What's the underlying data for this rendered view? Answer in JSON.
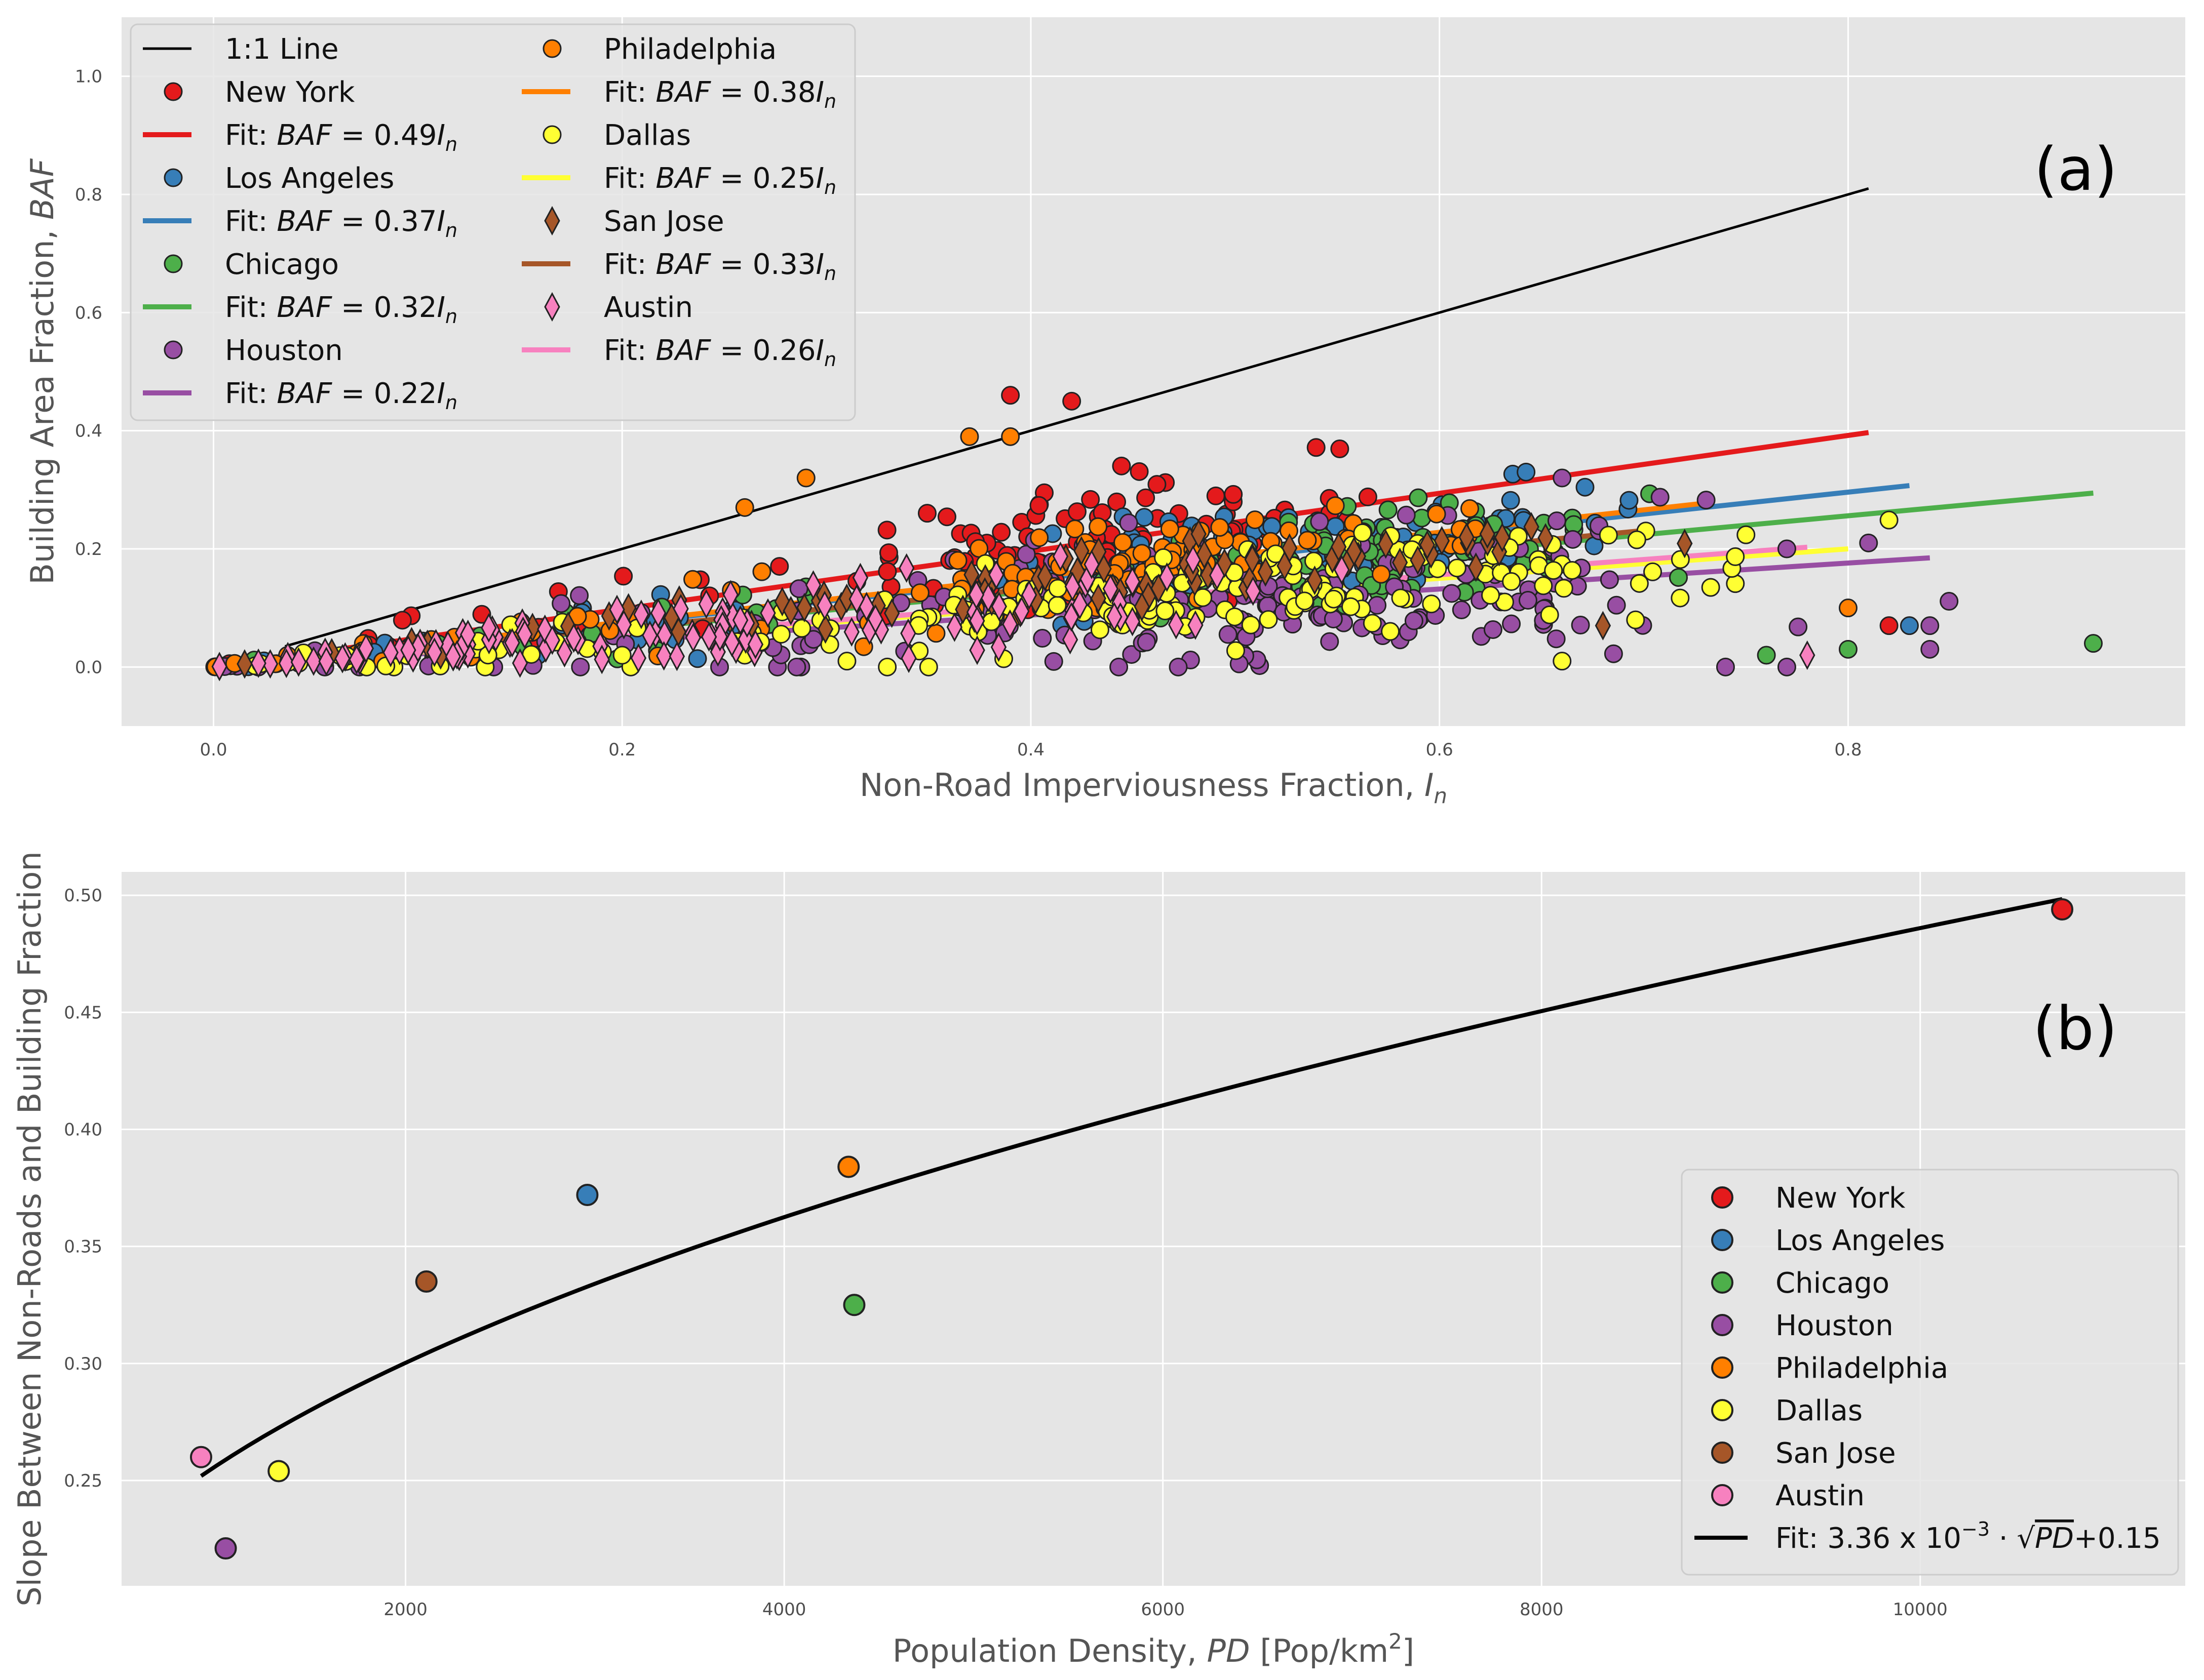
{
  "chart_data": [
    {
      "panel": "a",
      "type": "scatter",
      "panel_label": "(a)",
      "xlabel": "Non-Road Imperviousness Fraction, ",
      "xlabel_var": "I",
      "xlabel_sub": "n",
      "ylabel": "Building Area Fraction, ",
      "ylabel_var": "BAF",
      "xlim": [
        -0.045,
        0.965
      ],
      "ylim": [
        -0.1,
        1.1
      ],
      "xticks": [
        0.0,
        0.2,
        0.4,
        0.6,
        0.8
      ],
      "xtick_labels": [
        "0.0",
        "0.2",
        "0.4",
        "0.6",
        "0.8"
      ],
      "yticks": [
        0.0,
        0.2,
        0.4,
        0.6,
        0.8,
        1.0
      ],
      "ytick_labels": [
        "0.0",
        "0.2",
        "0.4",
        "0.6",
        "0.8",
        "1.0"
      ],
      "grid": true,
      "legend_location": "top-left",
      "legend_columns": 2,
      "one_to_one_line": {
        "label": "1:1 Line",
        "x": [
          0.035,
          0.81
        ],
        "y": [
          0.035,
          0.81
        ],
        "color": "#000000"
      },
      "series": [
        {
          "name": "New York",
          "color": "#e41a1c",
          "marker": "circle",
          "slope": 0.49,
          "fit_label_prefix": "Fit: ",
          "fit_label_var": "BAF",
          "fit_label_eq": " = 0.49",
          "fit_label_tail": "I",
          "fit_label_sub": "n",
          "fit_x": [
            0.0,
            0.81
          ],
          "x_center": 0.43,
          "x_spread": 0.09,
          "y_noise": 0.07,
          "count": 130,
          "extra_points": [
            [
              0.39,
              0.46
            ],
            [
              0.42,
              0.45
            ],
            [
              0.82,
              0.07
            ]
          ]
        },
        {
          "name": "Los Angeles",
          "color": "#377eb8",
          "marker": "circle",
          "slope": 0.37,
          "fit_label_prefix": "Fit: ",
          "fit_label_var": "BAF",
          "fit_label_eq": " = 0.37",
          "fit_label_tail": "I",
          "fit_label_sub": "n",
          "fit_x": [
            0.0,
            0.83
          ],
          "x_center": 0.55,
          "x_spread": 0.1,
          "y_noise": 0.06,
          "count": 130,
          "extra_points": [
            [
              0.83,
              0.07
            ]
          ]
        },
        {
          "name": "Chicago",
          "color": "#4daf4a",
          "marker": "circle",
          "slope": 0.32,
          "fit_label_prefix": "Fit: ",
          "fit_label_var": "BAF",
          "fit_label_eq": " = 0.32",
          "fit_label_tail": "I",
          "fit_label_sub": "n",
          "fit_x": [
            0.0,
            0.92
          ],
          "x_center": 0.56,
          "x_spread": 0.08,
          "y_noise": 0.06,
          "count": 110,
          "extra_points": [
            [
              0.92,
              0.04
            ],
            [
              0.8,
              0.03
            ],
            [
              0.76,
              0.02
            ]
          ]
        },
        {
          "name": "Houston",
          "color": "#984ea3",
          "marker": "circle",
          "slope": 0.22,
          "fit_label_prefix": "Fit: ",
          "fit_label_var": "BAF",
          "fit_label_eq": " = 0.22",
          "fit_label_tail": "I",
          "fit_label_sub": "n",
          "fit_x": [
            0.0,
            0.84
          ],
          "x_center": 0.53,
          "x_spread": 0.15,
          "y_noise": 0.08,
          "count": 200,
          "extra_points": [
            [
              0.84,
              0.03
            ],
            [
              0.84,
              0.07
            ],
            [
              0.74,
              0.0
            ],
            [
              0.77,
              0.0
            ],
            [
              0.66,
              0.32
            ],
            [
              0.77,
              0.2
            ],
            [
              0.81,
              0.21
            ]
          ]
        },
        {
          "name": "Philadelphia",
          "color": "#ff7f00",
          "marker": "circle",
          "slope": 0.38,
          "fit_label_prefix": "Fit: ",
          "fit_label_var": "BAF",
          "fit_label_eq": " = 0.38",
          "fit_label_tail": "I",
          "fit_label_sub": "n",
          "fit_x": [
            0.0,
            0.73
          ],
          "x_center": 0.46,
          "x_spread": 0.11,
          "y_noise": 0.06,
          "count": 110,
          "extra_points": [
            [
              0.37,
              0.39
            ],
            [
              0.39,
              0.39
            ],
            [
              0.29,
              0.32
            ],
            [
              0.26,
              0.27
            ],
            [
              0.8,
              0.1
            ]
          ]
        },
        {
          "name": "Dallas",
          "color": "#ffff33",
          "marker": "circle",
          "slope": 0.25,
          "fit_label_prefix": "Fit: ",
          "fit_label_var": "BAF",
          "fit_label_eq": " = 0.25",
          "fit_label_tail": "I",
          "fit_label_sub": "n",
          "fit_x": [
            0.0,
            0.8
          ],
          "x_center": 0.52,
          "x_spread": 0.15,
          "y_noise": 0.06,
          "count": 180,
          "extra_points": [
            [
              0.2,
              0.02
            ],
            [
              0.26,
              0.02
            ],
            [
              0.31,
              0.01
            ],
            [
              0.35,
              0.0
            ],
            [
              0.66,
              0.01
            ]
          ]
        },
        {
          "name": "San Jose",
          "color": "#a65628",
          "marker": "diamond",
          "slope": 0.33,
          "fit_label_prefix": "Fit: ",
          "fit_label_var": "BAF",
          "fit_label_eq": " = 0.33",
          "fit_label_tail": "I",
          "fit_label_sub": "n",
          "fit_x": [
            0.0,
            0.7
          ],
          "x_center": 0.45,
          "x_spread": 0.15,
          "y_noise": 0.04,
          "count": 90,
          "extra_points": [
            [
              0.68,
              0.07
            ]
          ]
        },
        {
          "name": "Austin",
          "color": "#f781bf",
          "marker": "diamond",
          "slope": 0.26,
          "fit_label_prefix": "Fit: ",
          "fit_label_var": "BAF",
          "fit_label_eq": " = 0.26",
          "fit_label_tail": "I",
          "fit_label_sub": "n",
          "fit_x": [
            0.0,
            0.78
          ],
          "x_center": 0.3,
          "x_spread": 0.18,
          "y_noise": 0.05,
          "count": 130,
          "extra_points": [
            [
              0.78,
              0.02
            ]
          ]
        }
      ]
    },
    {
      "panel": "b",
      "type": "scatter",
      "panel_label": "(b)",
      "xlabel": "Population Density, ",
      "xlabel_var": "PD",
      "xlabel_unit": " [Pop/km",
      "xlabel_sup": "2",
      "xlabel_end": "]",
      "ylabel": "Slope Between Non-Roads and Building Fraction",
      "xlim": [
        500,
        11400
      ],
      "ylim": [
        0.205,
        0.51
      ],
      "xticks": [
        2000,
        4000,
        6000,
        8000,
        10000
      ],
      "xtick_labels": [
        "2000",
        "4000",
        "6000",
        "8000",
        "10000"
      ],
      "yticks": [
        0.25,
        0.3,
        0.35,
        0.4,
        0.45,
        0.5
      ],
      "ytick_labels": [
        "0.25",
        "0.30",
        "0.35",
        "0.40",
        "0.45",
        "0.50"
      ],
      "grid": true,
      "legend_location": "lower-right",
      "points": [
        {
          "name": "New York",
          "x": 10750,
          "y": 0.494,
          "color": "#e41a1c"
        },
        {
          "name": "Los Angeles",
          "x": 2960,
          "y": 0.372,
          "color": "#377eb8"
        },
        {
          "name": "Chicago",
          "x": 4370,
          "y": 0.325,
          "color": "#4daf4a"
        },
        {
          "name": "Houston",
          "x": 1050,
          "y": 0.221,
          "color": "#984ea3"
        },
        {
          "name": "Philadelphia",
          "x": 4340,
          "y": 0.384,
          "color": "#ff7f00"
        },
        {
          "name": "Dallas",
          "x": 1330,
          "y": 0.254,
          "color": "#ffff33"
        },
        {
          "name": "San Jose",
          "x": 2110,
          "y": 0.335,
          "color": "#a65628"
        },
        {
          "name": "Austin",
          "x": 920,
          "y": 0.26,
          "color": "#f781bf"
        }
      ],
      "fit": {
        "label": "Fit: 3.36 x 10",
        "label_sup": "−3",
        "label_dot": " · √",
        "label_var": "PD",
        "label_end": "+0.15",
        "coefficient": 0.00336,
        "intercept": 0.15,
        "x_range": [
          920,
          10750
        ],
        "color": "#000000"
      }
    }
  ]
}
